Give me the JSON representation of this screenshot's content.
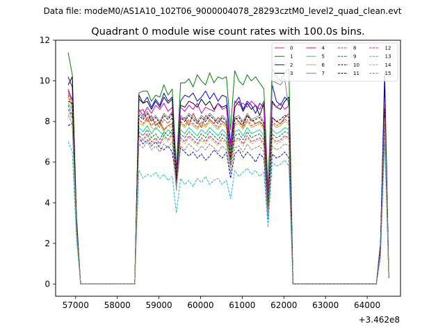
{
  "chart_data": {
    "type": "line",
    "suptitle": "Data file: modeM0/AS1A10_102T06_9000004078_28293cztM0_level2_quad_clean.evt",
    "title": "Quadrant 0 module wise count rates with 100.0s bins.",
    "xlabel": "",
    "ylabel": "",
    "x_offset_label": "+3.462e8",
    "xlim": [
      56520,
      64800
    ],
    "ylim": [
      -0.6,
      12
    ],
    "xticks": [
      57000,
      58000,
      59000,
      60000,
      61000,
      62000,
      63000,
      64000
    ],
    "xtick_labels": [
      "57000",
      "58000",
      "59000",
      "60000",
      "61000",
      "62000",
      "63000",
      "64000"
    ],
    "yticks": [
      0,
      2,
      4,
      6,
      8,
      10,
      12
    ],
    "ytick_labels": [
      "0",
      "2",
      "4",
      "6",
      "8",
      "10",
      "12"
    ],
    "grid": false,
    "legend_position": "top-right",
    "x": [
      56820,
      56920,
      57020,
      57120,
      58420,
      58520,
      58620,
      58720,
      58820,
      58920,
      59020,
      59120,
      59220,
      59320,
      59420,
      59520,
      59620,
      59720,
      59820,
      59920,
      60020,
      60120,
      60220,
      60320,
      60420,
      60520,
      60620,
      60720,
      60820,
      60920,
      61020,
      61120,
      61220,
      61320,
      61420,
      61520,
      61620,
      61720,
      61820,
      61920,
      62020,
      62120,
      62220,
      64220,
      64320,
      64420,
      64520
    ],
    "series": [
      {
        "name": "0",
        "color": "#d62728",
        "style": "solid",
        "values": [
          9.6,
          9.0,
          3.0,
          0.0,
          0.0,
          8.5,
          8.6,
          8.0,
          8.3,
          7.8,
          8.0,
          7.6,
          7.8,
          7.9,
          5.2,
          8.1,
          8.2,
          7.8,
          8.4,
          8.0,
          7.7,
          8.3,
          8.1,
          7.9,
          8.2,
          8.0,
          7.9,
          6.6,
          8.2,
          8.0,
          7.8,
          8.3,
          8.1,
          7.9,
          8.0,
          7.8,
          4.4,
          8.2,
          8.0,
          7.9,
          8.2,
          8.4,
          0.0,
          0.0,
          1.8,
          8.9,
          0.3
        ]
      },
      {
        "name": "1",
        "color": "#008000",
        "style": "solid",
        "values": [
          11.4,
          10.3,
          3.4,
          0.0,
          0.0,
          9.4,
          9.5,
          9.5,
          9.0,
          9.3,
          9.2,
          9.8,
          9.3,
          9.6,
          5.6,
          9.9,
          9.9,
          10.1,
          9.7,
          10.3,
          10.0,
          9.8,
          10.4,
          9.9,
          10.2,
          10.1,
          10.2,
          7.6,
          10.5,
          10.0,
          9.8,
          10.3,
          10.0,
          10.2,
          9.9,
          9.6,
          4.7,
          10.6,
          10.2,
          10.0,
          10.4,
          10.6,
          0.0,
          0.0,
          2.0,
          9.8,
          0.4
        ]
      },
      {
        "name": "2",
        "color": "#0000ff",
        "style": "solid",
        "values": [
          10.2,
          9.7,
          3.2,
          0.0,
          0.0,
          9.1,
          8.9,
          9.2,
          8.7,
          9.1,
          8.8,
          9.4,
          9.0,
          9.2,
          5.4,
          9.0,
          9.3,
          9.2,
          9.4,
          9.0,
          9.2,
          9.5,
          9.1,
          9.4,
          9.0,
          9.3,
          9.2,
          6.9,
          8.9,
          9.2,
          8.6,
          9.0,
          8.8,
          8.4,
          8.9,
          8.7,
          4.3,
          9.8,
          9.0,
          8.8,
          9.2,
          9.0,
          0.0,
          0.0,
          2.0,
          10.4,
          0.4
        ]
      },
      {
        "name": "3",
        "color": "#000000",
        "style": "solid",
        "values": [
          9.8,
          10.2,
          3.1,
          0.0,
          0.0,
          9.3,
          8.9,
          9.0,
          8.6,
          9.0,
          8.7,
          9.2,
          8.9,
          9.1,
          4.9,
          8.8,
          8.7,
          9.0,
          8.9,
          8.7,
          9.1,
          8.8,
          9.0,
          8.6,
          8.9,
          8.7,
          8.8,
          6.4,
          8.7,
          9.0,
          8.5,
          8.9,
          8.6,
          8.8,
          8.3,
          8.9,
          3.6,
          9.0,
          8.7,
          8.6,
          9.0,
          9.2,
          0.0,
          0.0,
          1.9,
          9.6,
          0.3
        ]
      },
      {
        "name": "4",
        "color": "#cc00cc",
        "style": "solid",
        "values": [
          9.5,
          9.1,
          2.9,
          0.0,
          0.0,
          8.6,
          8.3,
          8.7,
          8.4,
          8.8,
          8.6,
          8.9,
          8.5,
          8.7,
          5.3,
          8.7,
          8.5,
          8.8,
          8.6,
          8.9,
          8.4,
          8.7,
          8.6,
          8.5,
          8.9,
          8.6,
          8.7,
          6.7,
          9.0,
          8.8,
          8.9,
          8.7,
          9.0,
          8.8,
          8.6,
          9.0,
          4.1,
          8.9,
          8.7,
          8.9,
          8.6,
          8.8,
          0.0,
          0.0,
          1.8,
          9.2,
          0.3
        ]
      },
      {
        "name": "5",
        "color": "#17becf",
        "style": "solid",
        "values": [
          8.9,
          8.6,
          2.8,
          0.0,
          0.0,
          7.7,
          7.5,
          7.8,
          7.4,
          7.7,
          7.5,
          7.3,
          7.6,
          7.4,
          5.0,
          7.6,
          7.4,
          7.7,
          7.5,
          7.3,
          7.6,
          7.4,
          7.7,
          7.5,
          7.3,
          7.6,
          7.4,
          6.1,
          7.5,
          7.6,
          7.3,
          7.7,
          7.4,
          7.5,
          7.6,
          7.3,
          3.5,
          7.6,
          7.4,
          7.5,
          7.7,
          7.6,
          0.0,
          0.0,
          1.6,
          8.4,
          0.3
        ]
      },
      {
        "name": "6",
        "color": "#bcbd22",
        "style": "solid",
        "values": [
          9.2,
          8.7,
          2.9,
          0.0,
          0.0,
          7.9,
          7.8,
          8.1,
          7.7,
          7.6,
          7.9,
          7.5,
          7.8,
          7.7,
          5.1,
          7.9,
          7.7,
          8.0,
          7.8,
          7.6,
          7.9,
          7.7,
          8.0,
          7.8,
          7.6,
          7.9,
          7.7,
          6.3,
          7.8,
          7.9,
          7.6,
          8.0,
          7.7,
          7.8,
          7.9,
          7.6,
          3.8,
          7.9,
          7.7,
          7.8,
          8.0,
          7.9,
          0.0,
          0.0,
          1.7,
          8.7,
          0.3
        ]
      },
      {
        "name": "7",
        "color": "#7f7f7f",
        "style": "solid",
        "values": [
          9.4,
          9.0,
          3.0,
          0.0,
          0.0,
          8.4,
          8.2,
          8.5,
          8.1,
          8.3,
          8.0,
          8.4,
          8.2,
          8.5,
          5.2,
          8.3,
          8.1,
          8.4,
          8.2,
          8.0,
          8.3,
          8.1,
          8.4,
          8.2,
          8.0,
          8.3,
          8.1,
          6.5,
          8.2,
          8.3,
          8.0,
          8.4,
          8.1,
          8.2,
          8.3,
          8.0,
          4.0,
          10.0,
          9.9,
          9.8,
          10.1,
          8.6,
          0.0,
          0.0,
          1.8,
          9.0,
          0.3
        ]
      },
      {
        "name": "8",
        "color": "#d62728",
        "style": "dashed",
        "values": [
          9.3,
          8.8,
          2.9,
          0.0,
          0.0,
          8.1,
          7.9,
          8.2,
          7.8,
          8.0,
          7.7,
          8.1,
          7.9,
          8.2,
          5.4,
          8.0,
          7.8,
          8.1,
          7.9,
          7.7,
          8.0,
          7.8,
          8.1,
          7.9,
          7.7,
          8.0,
          7.8,
          6.0,
          7.9,
          8.0,
          7.7,
          8.1,
          7.8,
          7.9,
          8.0,
          7.7,
          3.9,
          8.0,
          7.8,
          7.9,
          8.1,
          8.0,
          0.0,
          0.0,
          1.7,
          8.8,
          0.3
        ]
      },
      {
        "name": "9",
        "color": "#008000",
        "style": "dashed",
        "values": [
          8.8,
          8.3,
          2.8,
          0.0,
          0.0,
          7.5,
          7.3,
          7.6,
          7.2,
          7.4,
          7.1,
          7.5,
          7.3,
          7.6,
          4.9,
          7.4,
          7.2,
          7.5,
          7.3,
          7.1,
          7.4,
          7.2,
          7.5,
          7.3,
          7.1,
          7.4,
          7.2,
          5.9,
          7.3,
          7.4,
          7.1,
          7.5,
          7.2,
          7.3,
          7.4,
          7.1,
          3.6,
          7.4,
          7.2,
          7.3,
          7.5,
          7.4,
          0.0,
          0.0,
          1.6,
          8.3,
          0.3
        ]
      },
      {
        "name": "10",
        "color": "#0000ff",
        "style": "dashed",
        "values": [
          7.8,
          7.9,
          2.6,
          0.0,
          0.0,
          7.2,
          6.9,
          7.1,
          6.8,
          7.0,
          6.7,
          6.6,
          6.8,
          6.5,
          5.0,
          6.7,
          6.5,
          6.3,
          6.5,
          6.2,
          6.4,
          6.1,
          6.3,
          6.6,
          6.4,
          6.2,
          6.5,
          5.2,
          6.4,
          6.6,
          6.2,
          6.5,
          6.3,
          6.0,
          6.4,
          6.2,
          3.2,
          6.4,
          6.2,
          6.3,
          6.5,
          6.2,
          0.0,
          0.0,
          1.5,
          7.9,
          0.3
        ]
      },
      {
        "name": "11",
        "color": "#000000",
        "style": "dashed",
        "values": [
          9.0,
          8.9,
          2.9,
          0.0,
          0.0,
          8.3,
          8.1,
          8.4,
          8.0,
          8.2,
          7.9,
          8.3,
          8.1,
          8.4,
          5.1,
          8.2,
          8.0,
          8.3,
          8.1,
          7.9,
          8.2,
          8.0,
          8.3,
          8.1,
          7.9,
          8.2,
          8.0,
          6.2,
          8.1,
          8.2,
          7.9,
          8.3,
          8.0,
          8.1,
          8.2,
          7.9,
          3.7,
          8.2,
          8.0,
          8.1,
          8.3,
          8.2,
          0.0,
          0.0,
          1.7,
          8.6,
          0.3
        ]
      },
      {
        "name": "12",
        "color": "#cc00cc",
        "style": "dashed",
        "values": [
          8.6,
          8.2,
          2.7,
          0.0,
          0.0,
          7.3,
          7.1,
          7.4,
          7.0,
          7.2,
          6.9,
          7.3,
          7.1,
          7.4,
          4.8,
          7.2,
          7.0,
          7.3,
          7.1,
          6.9,
          7.2,
          7.0,
          7.3,
          7.1,
          6.9,
          7.2,
          7.0,
          5.8,
          7.1,
          7.2,
          6.9,
          7.3,
          7.0,
          7.1,
          7.2,
          6.9,
          3.5,
          7.2,
          7.0,
          7.1,
          7.3,
          7.2,
          0.0,
          0.0,
          1.6,
          8.2,
          0.3
        ]
      },
      {
        "name": "13",
        "color": "#17becf",
        "style": "dashed",
        "values": [
          7.0,
          6.5,
          2.2,
          0.0,
          0.0,
          5.6,
          5.2,
          5.4,
          5.3,
          5.5,
          5.2,
          5.4,
          5.1,
          5.3,
          3.5,
          5.2,
          4.9,
          5.1,
          4.8,
          5.2,
          5.0,
          5.3,
          4.9,
          5.1,
          5.2,
          4.9,
          5.1,
          4.2,
          5.6,
          5.3,
          5.5,
          5.7,
          5.4,
          5.6,
          5.3,
          5.5,
          2.8,
          6.0,
          5.8,
          5.9,
          6.1,
          5.8,
          0.0,
          0.0,
          1.3,
          6.9,
          0.3
        ]
      },
      {
        "name": "14",
        "color": "#bcbd22",
        "style": "dashed",
        "values": [
          8.4,
          8.1,
          2.7,
          0.0,
          0.0,
          7.2,
          7.0,
          7.3,
          6.9,
          7.1,
          6.8,
          7.2,
          7.0,
          7.3,
          4.7,
          7.1,
          6.9,
          7.2,
          7.0,
          6.8,
          7.1,
          6.9,
          7.2,
          7.0,
          6.8,
          7.1,
          6.9,
          5.7,
          7.0,
          7.1,
          6.8,
          7.2,
          6.9,
          7.0,
          7.1,
          6.8,
          3.4,
          7.1,
          6.9,
          7.0,
          7.2,
          7.1,
          0.0,
          0.0,
          1.6,
          8.1,
          0.3
        ]
      },
      {
        "name": "15",
        "color": "#7f7f7f",
        "style": "dashed",
        "values": [
          8.3,
          7.9,
          2.6,
          0.0,
          0.0,
          6.9,
          6.7,
          7.0,
          6.6,
          6.8,
          6.5,
          6.9,
          6.7,
          7.0,
          4.6,
          6.8,
          6.6,
          6.9,
          6.7,
          6.5,
          6.8,
          6.6,
          6.9,
          6.7,
          6.5,
          6.8,
          6.6,
          5.5,
          6.7,
          6.8,
          6.5,
          6.9,
          6.6,
          6.7,
          6.8,
          6.5,
          3.3,
          6.8,
          6.6,
          6.7,
          6.9,
          6.8,
          0.0,
          0.0,
          1.5,
          7.8,
          0.3
        ]
      }
    ]
  }
}
